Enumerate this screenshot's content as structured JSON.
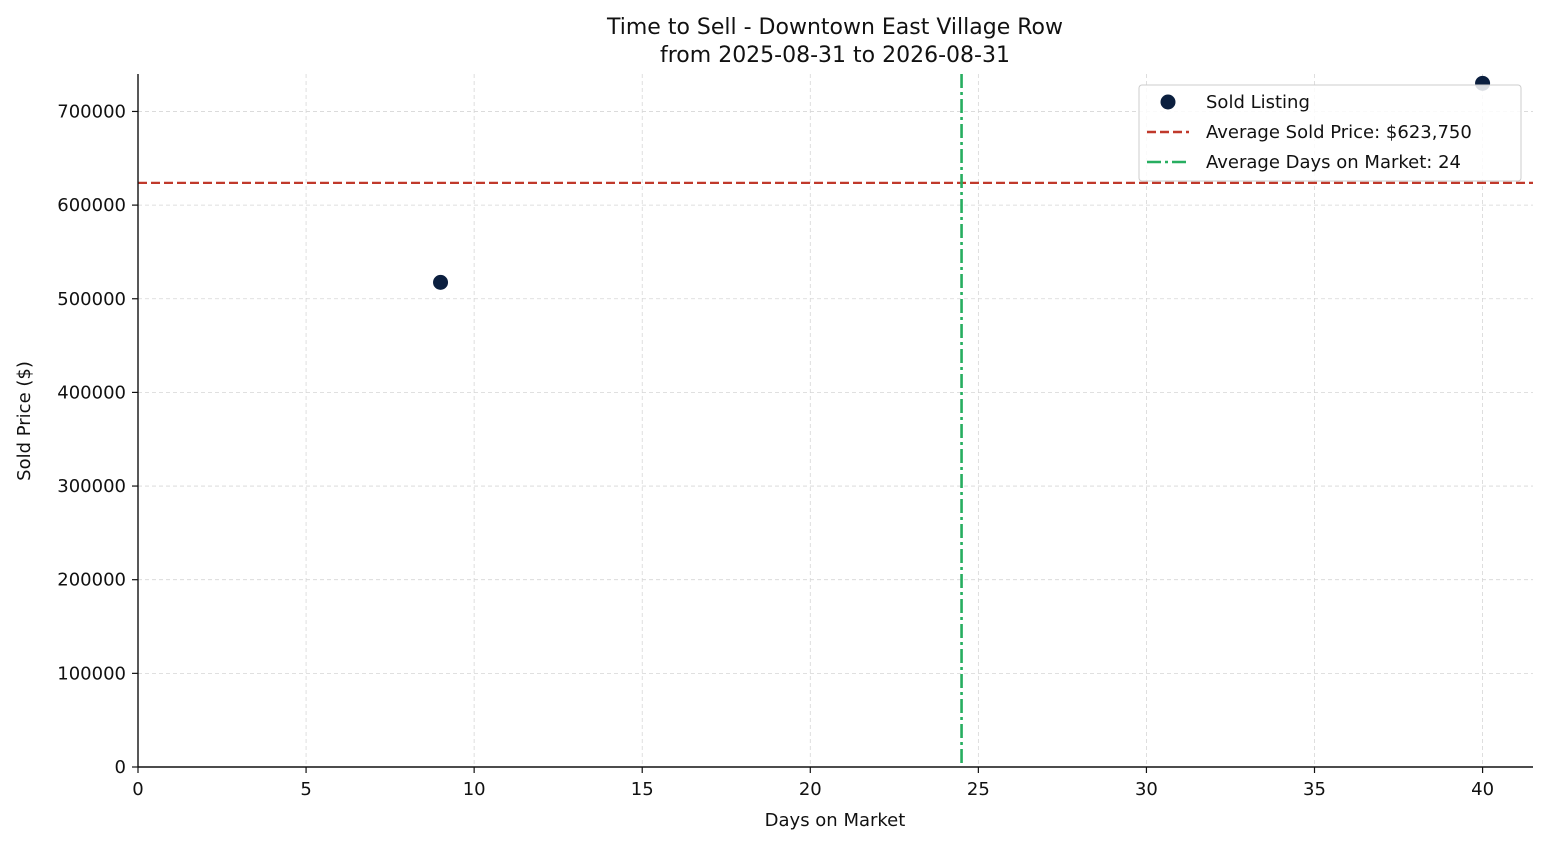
{
  "chart_data": {
    "type": "scatter",
    "title": "Time to Sell - Downtown East Village Row",
    "subtitle": "from 2025-08-31 to 2026-08-31",
    "xlabel": "Days on Market",
    "ylabel": "Sold Price ($)",
    "xlim": [
      0,
      41.5
    ],
    "ylim": [
      0,
      740000
    ],
    "xticks": [
      0,
      5,
      10,
      15,
      20,
      25,
      30,
      35,
      40
    ],
    "yticks": [
      0,
      100000,
      200000,
      300000,
      400000,
      500000,
      600000,
      700000
    ],
    "grid": true,
    "legend_position": "top-right",
    "series": [
      {
        "name": "Sold Listing",
        "color": "#0b1f3f",
        "points": [
          {
            "x": 9,
            "y": 517500
          },
          {
            "x": 40,
            "y": 730000
          }
        ]
      }
    ],
    "reference_lines": [
      {
        "orientation": "horizontal",
        "value": 623750,
        "label": "Average Sold Price: $623,750",
        "color": "#c0392b",
        "style": "dashed"
      },
      {
        "orientation": "vertical",
        "value": 24.5,
        "label": "Average Days on Market: 24",
        "color": "#27ae60",
        "style": "dashdot"
      }
    ],
    "legend": [
      {
        "label": "Sold Listing",
        "marker": "dot",
        "color": "#0b1f3f"
      },
      {
        "label": "Average Sold Price: $623,750",
        "marker": "dashed-line",
        "color": "#c0392b"
      },
      {
        "label": "Average Days on Market: 24",
        "marker": "dashdot-line",
        "color": "#27ae60"
      }
    ]
  }
}
